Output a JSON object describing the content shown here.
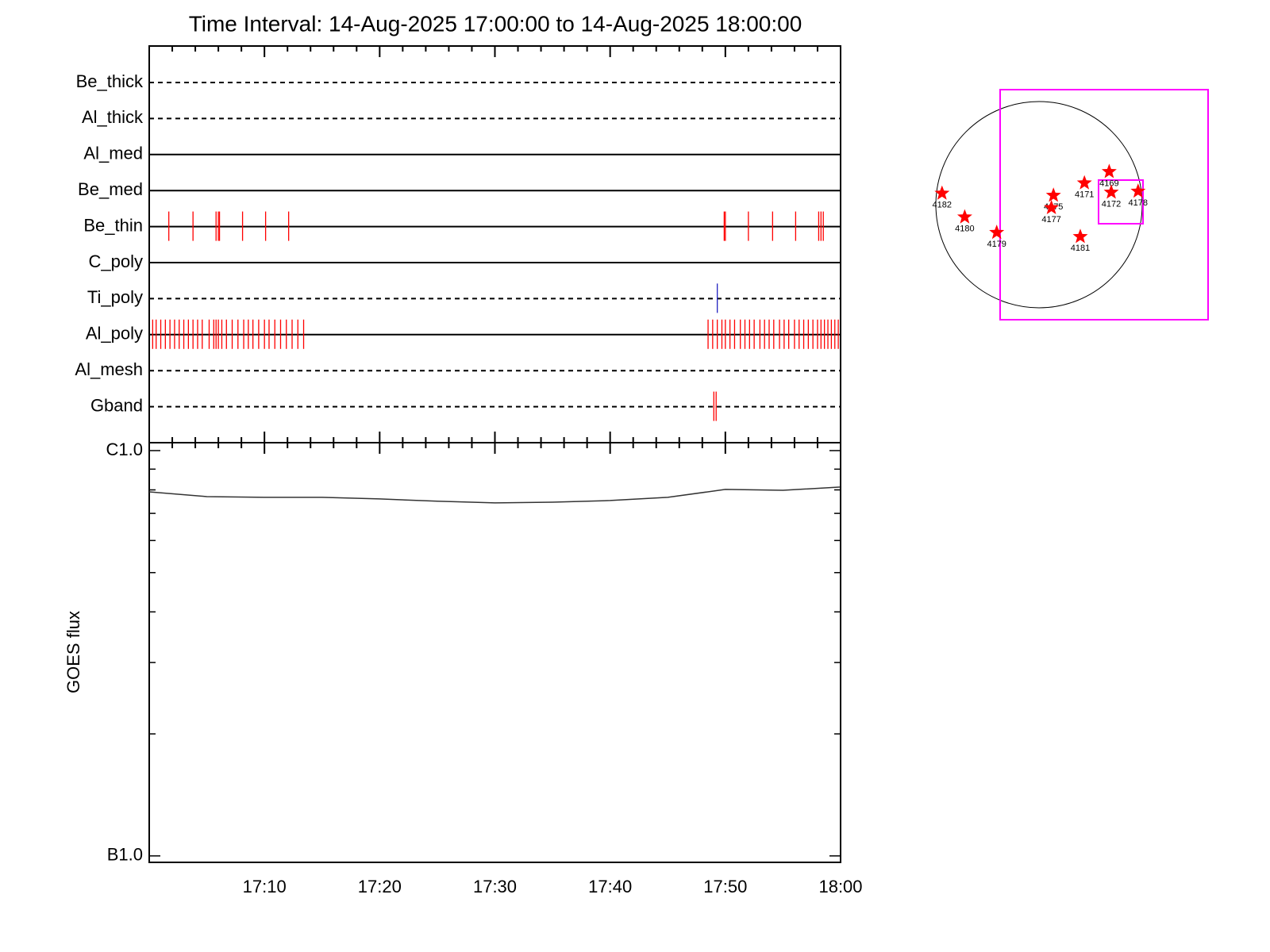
{
  "chart_data": [
    {
      "type": "event",
      "title": "Time Interval: 14-Aug-2025 17:00:00 to 14-Aug-2025 18:00:00",
      "xlim": [
        0,
        60
      ],
      "xticks": [
        {
          "value": 10,
          "label": "17:10"
        },
        {
          "value": 20,
          "label": "17:20"
        },
        {
          "value": 30,
          "label": "17:30"
        },
        {
          "value": 40,
          "label": "17:40"
        },
        {
          "value": 50,
          "label": "17:50"
        },
        {
          "value": 60,
          "label": "18:00"
        }
      ],
      "xminorticks": [
        2,
        4,
        6,
        8,
        12,
        14,
        16,
        18,
        22,
        24,
        26,
        28,
        32,
        34,
        36,
        38,
        42,
        44,
        46,
        48,
        52,
        54,
        56,
        58
      ],
      "series": [
        {
          "name": "Be_thick",
          "line": "dashed",
          "color": "#ff0000",
          "values": []
        },
        {
          "name": "Al_thick",
          "line": "dashed",
          "color": "#ff0000",
          "values": []
        },
        {
          "name": "Al_med",
          "line": "solid",
          "color": "#ff0000",
          "values": []
        },
        {
          "name": "Be_med",
          "line": "solid",
          "color": "#ff0000",
          "values": []
        },
        {
          "name": "Be_thin",
          "line": "solid",
          "color": "#ff0000",
          "values": [
            1.7,
            3.8,
            5.8,
            6.0,
            6.1,
            8.1,
            10.1,
            12.1,
            49.9,
            50.0,
            52.0,
            54.1,
            56.1,
            58.1,
            58.3,
            58.5
          ]
        },
        {
          "name": "C_poly",
          "line": "solid",
          "color": "#ff0000",
          "values": []
        },
        {
          "name": "Ti_poly",
          "line": "dashed",
          "color": "#2020c0",
          "values": [
            49.3
          ]
        },
        {
          "name": "Al_poly",
          "line": "solid",
          "color": "#ff0000",
          "values": [
            0.3,
            0.6,
            1.0,
            1.4,
            1.8,
            2.2,
            2.6,
            3.0,
            3.4,
            3.8,
            4.2,
            4.6,
            5.2,
            5.6,
            5.8,
            6.0,
            6.3,
            6.7,
            7.2,
            7.7,
            8.2,
            8.6,
            9.0,
            9.5,
            10.0,
            10.4,
            10.9,
            11.4,
            11.9,
            12.4,
            12.9,
            13.4,
            48.5,
            48.9,
            49.3,
            49.7,
            50.0,
            50.4,
            50.8,
            51.3,
            51.7,
            52.1,
            52.5,
            53.0,
            53.4,
            53.8,
            54.2,
            54.7,
            55.1,
            55.5,
            56.0,
            56.4,
            56.8,
            57.2,
            57.6,
            58.0,
            58.3,
            58.6,
            58.9,
            59.2,
            59.5,
            59.8
          ]
        },
        {
          "name": "Al_mesh",
          "line": "dashed",
          "color": "#ff0000",
          "values": []
        },
        {
          "name": "Gband",
          "line": "dashed",
          "color": "#ff0000",
          "values": [
            49.0,
            49.2
          ]
        }
      ]
    },
    {
      "type": "line",
      "y_label": "GOES flux",
      "log": true,
      "color": "#333333",
      "x": [
        0,
        5,
        10,
        15,
        20,
        25,
        30,
        35,
        40,
        45,
        50,
        55,
        60
      ],
      "values": [
        7.91e-07,
        7.7e-07,
        7.67e-07,
        7.67e-07,
        7.6e-07,
        7.5e-07,
        7.43e-07,
        7.46e-07,
        7.53e-07,
        7.67e-07,
        8.02e-07,
        7.98e-07,
        8.13e-07
      ],
      "xlim": [
        0,
        60
      ],
      "ylim": [
        9.64e-08,
        1.046e-06
      ],
      "yticks": [
        {
          "value": 1e-07,
          "label": "B1.0"
        },
        {
          "value": 1e-06,
          "label": "C1.0"
        }
      ],
      "yminorticks": [
        2e-07,
        3e-07,
        4e-07,
        5e-07,
        6e-07,
        7e-07,
        8e-07,
        9e-07
      ]
    },
    {
      "type": "map",
      "color": "#ff0000",
      "regions": [
        {
          "label": "4182",
          "x": -0.94,
          "y": 0.11
        },
        {
          "label": "4180",
          "x": -0.72,
          "y": -0.12
        },
        {
          "label": "4179",
          "x": -0.41,
          "y": -0.27
        },
        {
          "label": "4175",
          "x": 0.14,
          "y": 0.09
        },
        {
          "label": "4177",
          "x": 0.12,
          "y": -0.03
        },
        {
          "label": "4171",
          "x": 0.44,
          "y": 0.21
        },
        {
          "label": "4169",
          "x": 0.68,
          "y": 0.32
        },
        {
          "label": "4172",
          "x": 0.7,
          "y": 0.12
        },
        {
          "label": "4178",
          "x": 0.96,
          "y": 0.13
        },
        {
          "label": "4181",
          "x": 0.4,
          "y": -0.31
        }
      ]
    }
  ]
}
